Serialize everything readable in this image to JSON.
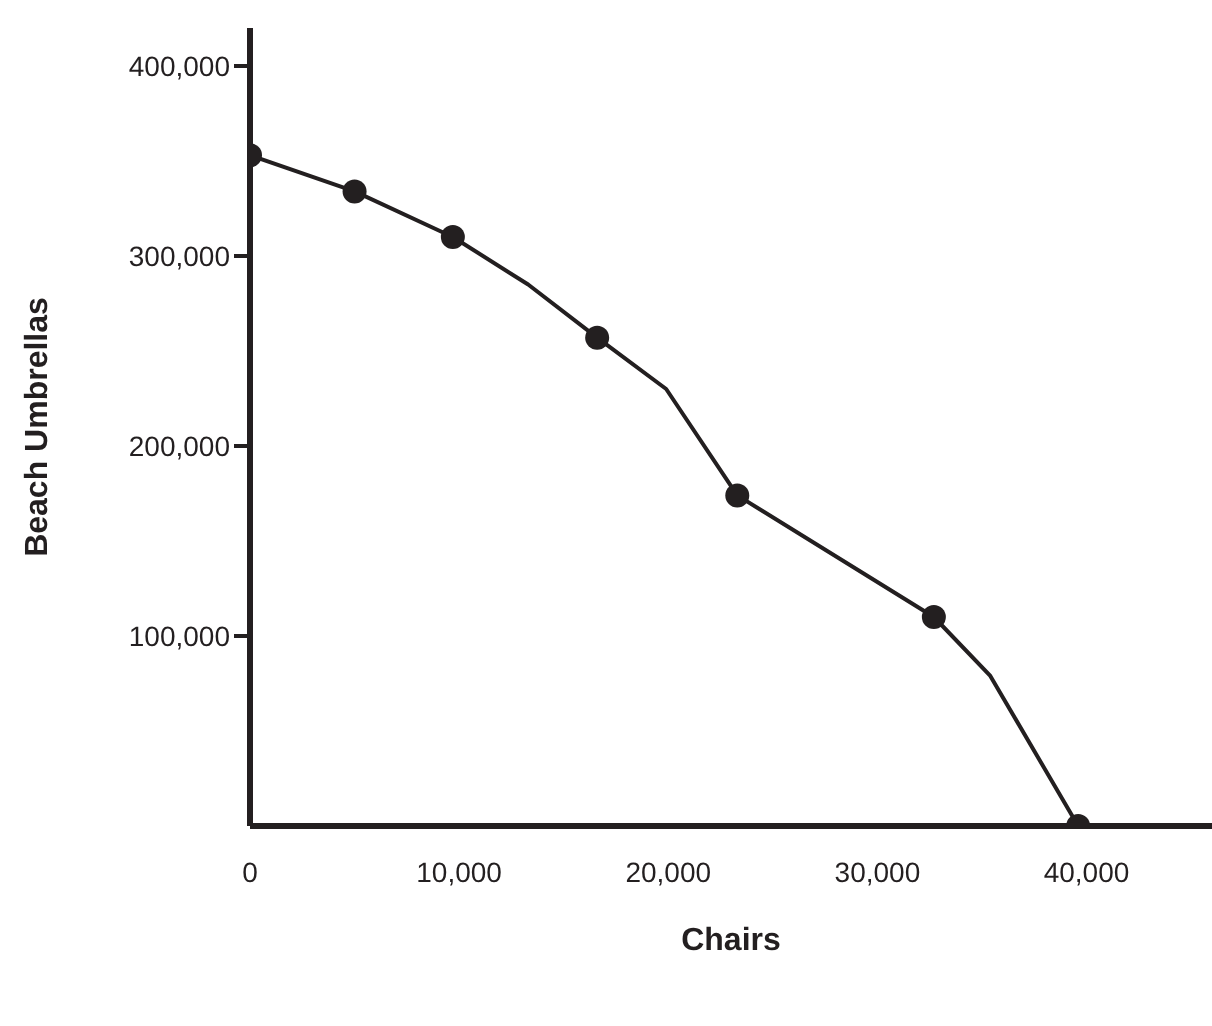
{
  "chart_data": {
    "type": "line",
    "xlabel": "Chairs",
    "ylabel": "Beach Umbrellas",
    "xlim": [
      0,
      46000
    ],
    "ylim": [
      0,
      420000
    ],
    "xticks": [
      0,
      {
        "value": 10000,
        "label": "10,000"
      },
      {
        "value": 20000,
        "label": "20,000"
      },
      {
        "value": 30000,
        "label": "30,000"
      },
      {
        "value": 40000,
        "label": "40,000"
      }
    ],
    "yticks": [
      {
        "value": 100000,
        "label": "100,000"
      },
      {
        "value": 200000,
        "label": "200,000"
      },
      {
        "value": 300000,
        "label": "300,000"
      },
      {
        "value": 400000,
        "label": "400,000"
      }
    ],
    "grid": false,
    "legend": false,
    "series": [
      {
        "color": "#231f20",
        "marker": "none",
        "x": [
          0,
          5000,
          9700,
          13300,
          16600,
          19900,
          23300,
          32700,
          35400,
          39600
        ],
        "values": [
          353000,
          334000,
          310000,
          285000,
          257000,
          230000,
          174000,
          110000,
          79000,
          0
        ]
      },
      {
        "type": "scatter",
        "color": "#231f20",
        "marker": "circle",
        "x": [
          0,
          5000,
          9700,
          16600,
          23300,
          32700,
          39600
        ],
        "values": [
          353000,
          334000,
          310000,
          257000,
          174000,
          110000,
          0
        ]
      }
    ]
  }
}
